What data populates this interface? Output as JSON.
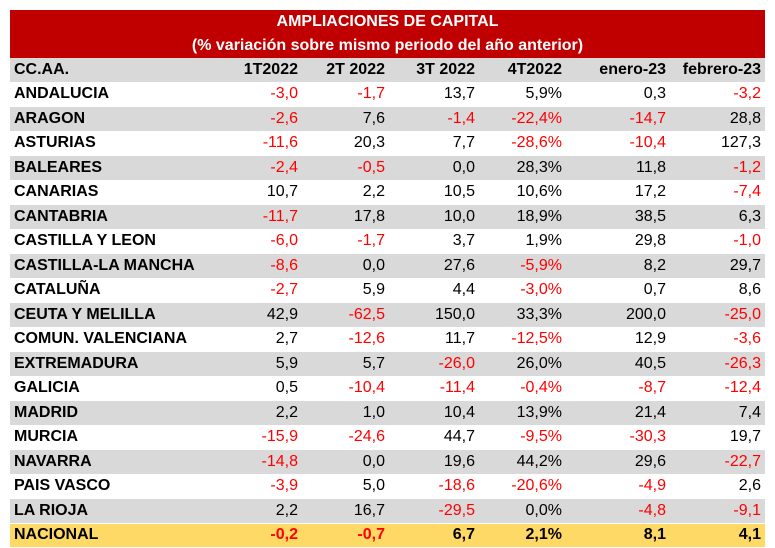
{
  "title": "AMPLIACIONES DE CAPITAL",
  "subtitle": "(% variación sobre mismo periodo del año anterior)",
  "columns": [
    "CC.AA.",
    "1T2022",
    "2T 2022",
    "3T 2022",
    "4T2022",
    "enero-23",
    "febrero-23"
  ],
  "rows": [
    {
      "region": "ANDALUCIA",
      "values": [
        "-3,0",
        "-1,7",
        "13,7",
        "5,9%",
        "0,3",
        "-3,2"
      ]
    },
    {
      "region": "ARAGON",
      "values": [
        "-2,6",
        "7,6",
        "-1,4",
        "-22,4%",
        "-14,7",
        "28,8"
      ]
    },
    {
      "region": "ASTURIAS",
      "values": [
        "-11,6",
        "20,3",
        "7,7",
        "-28,6%",
        "-10,4",
        "127,3"
      ]
    },
    {
      "region": "BALEARES",
      "values": [
        "-2,4",
        "-0,5",
        "0,0",
        "28,3%",
        "11,8",
        "-1,2"
      ]
    },
    {
      "region": "CANARIAS",
      "values": [
        "10,7",
        "2,2",
        "10,5",
        "10,6%",
        "17,2",
        "-7,4"
      ]
    },
    {
      "region": "CANTABRIA",
      "values": [
        "-11,7",
        "17,8",
        "10,0",
        "18,9%",
        "38,5",
        "6,3"
      ]
    },
    {
      "region": "CASTILLA Y LEON",
      "values": [
        "-6,0",
        "-1,7",
        "3,7",
        "1,9%",
        "29,8",
        "-1,0"
      ]
    },
    {
      "region": "CASTILLA-LA MANCHA",
      "values": [
        "-8,6",
        "0,0",
        "27,6",
        "-5,9%",
        "8,2",
        "29,7"
      ]
    },
    {
      "region": "CATALUÑA",
      "values": [
        "-2,7",
        "5,9",
        "4,4",
        "-3,0%",
        "0,7",
        "8,6"
      ]
    },
    {
      "region": "CEUTA Y MELILLA",
      "values": [
        "42,9",
        "-62,5",
        "150,0",
        "33,3%",
        "200,0",
        "-25,0"
      ]
    },
    {
      "region": "COMUN. VALENCIANA",
      "values": [
        "2,7",
        "-12,6",
        "11,7",
        "-12,5%",
        "12,9",
        "-3,6"
      ]
    },
    {
      "region": "EXTREMADURA",
      "values": [
        "5,9",
        "5,7",
        "-26,0",
        "26,0%",
        "40,5",
        "-26,3"
      ]
    },
    {
      "region": "GALICIA",
      "values": [
        "0,5",
        "-10,4",
        "-11,4",
        "-0,4%",
        "-8,7",
        "-12,4"
      ]
    },
    {
      "region": "MADRID",
      "values": [
        "2,2",
        "1,0",
        "10,4",
        "13,9%",
        "21,4",
        "7,4"
      ]
    },
    {
      "region": "MURCIA",
      "values": [
        "-15,9",
        "-24,6",
        "44,7",
        "-9,5%",
        "-30,3",
        "19,7"
      ]
    },
    {
      "region": "NAVARRA",
      "values": [
        "-14,8",
        "0,0",
        "19,6",
        "44,2%",
        "29,6",
        "-22,7"
      ]
    },
    {
      "region": "PAIS VASCO",
      "values": [
        "-3,9",
        "5,0",
        "-18,6",
        "-20,6%",
        "-4,9",
        "2,6"
      ]
    },
    {
      "region": "LA RIOJA",
      "values": [
        "2,2",
        "16,7",
        "-29,5",
        "0,0%",
        "-4,8",
        "-9,1"
      ]
    }
  ],
  "total": {
    "region": "NACIONAL",
    "values": [
      "-0,2",
      "-0,7",
      "6,7",
      "2,1%",
      "8,1",
      "4,1"
    ]
  },
  "colors": {
    "title_bg": "#c00000",
    "title_text": "#ffffff",
    "header_bg": "#d9d9d9",
    "stripe_bg": "#d9d9d9",
    "total_bg": "#ffd966",
    "negative_text": "#ff0000"
  }
}
